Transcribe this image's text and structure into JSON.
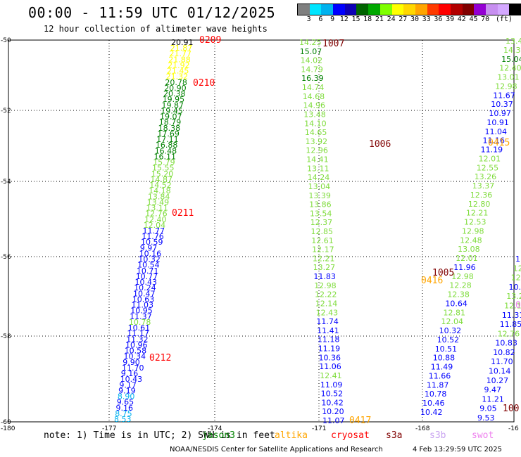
{
  "title": "00:00 - 11:59 UTC 01/12/2025",
  "subtitle": "12 hour collection of altimeter wave heights",
  "colorbar": {
    "colors": [
      "#7f7f7f",
      "#00e5ff",
      "#00b2ee",
      "#0000ff",
      "#0d00b5",
      "#006400",
      "#00a800",
      "#7fff00",
      "#ffff00",
      "#ffd700",
      "#ffa500",
      "#ff3b00",
      "#ff0000",
      "#b20000",
      "#800000",
      "#9400d3",
      "#c78ff0",
      "#d4a8ff",
      "#000000"
    ],
    "labels": [
      "3",
      "6",
      "9",
      "12",
      "15",
      "18",
      "21",
      "24",
      "27",
      "30",
      "33",
      "36",
      "39",
      "42",
      "45",
      "70",
      "(ft)"
    ]
  },
  "axes": {
    "lat_labels": [
      "-50",
      "-52",
      "-54",
      "-56",
      "-58",
      "-60"
    ],
    "lon_labels": [
      "-180",
      "-177",
      "-174",
      "-171",
      "-168",
      "-16"
    ]
  },
  "footer": {
    "note": "note: 1) Time is in UTC; 2) SWH is in feet",
    "legend": [
      {
        "label": "jason3",
        "color": "#008000"
      },
      {
        "label": "altika",
        "color": "#ffa500"
      },
      {
        "label": "cryosat",
        "color": "#ff0000"
      },
      {
        "label": "s3a",
        "color": "#800000"
      },
      {
        "label": "s3b",
        "color": "#c8a2f0"
      },
      {
        "label": "swot",
        "color": "#ee82ee"
      }
    ],
    "credit": "NOAA/NESDIS Center for Satellite Applications and Research",
    "timestamp": "4 Feb 13:29:59 UTC 2025"
  },
  "time_labels": [
    {
      "text": "0209",
      "color": "#ff0000"
    },
    {
      "text": "0210",
      "color": "#ff0000"
    },
    {
      "text": "0211",
      "color": "#ff0000"
    },
    {
      "text": "0212",
      "color": "#ff0000"
    },
    {
      "text": "1007",
      "color": "#800000"
    },
    {
      "text": "1006",
      "color": "#800000"
    },
    {
      "text": "1005",
      "color": "#800000"
    },
    {
      "text": "0415",
      "color": "#ffa500"
    },
    {
      "text": "0416",
      "color": "#ffa500"
    },
    {
      "text": "0417",
      "color": "#ffa500"
    },
    {
      "text": "100",
      "color": "#800000"
    },
    {
      "text": "0",
      "color": "#ee82ee"
    }
  ],
  "tracks": {
    "track_a": [
      {
        "v": "20.91",
        "c": "#000000"
      },
      {
        "v": "21.87",
        "c": "#ffff00"
      },
      {
        "v": "21.77",
        "c": "#ffff00"
      },
      {
        "v": "21.88",
        "c": "#ffff00"
      },
      {
        "v": "21.92",
        "c": "#ffff00"
      },
      {
        "v": "21.45",
        "c": "#ffff00"
      },
      {
        "v": "21.32",
        "c": "#ffff00"
      },
      {
        "v": "20.78",
        "c": "#008000"
      },
      {
        "v": "20.90",
        "c": "#008000"
      },
      {
        "v": "20.38",
        "c": "#008000"
      },
      {
        "v": "19.95",
        "c": "#008000"
      },
      {
        "v": "19.87",
        "c": "#008000"
      },
      {
        "v": "19.45",
        "c": "#008000"
      },
      {
        "v": "19.07",
        "c": "#008000"
      },
      {
        "v": "18.79",
        "c": "#008000"
      },
      {
        "v": "18.38",
        "c": "#008000"
      },
      {
        "v": "17.69",
        "c": "#008000"
      },
      {
        "v": "17.11",
        "c": "#008000"
      },
      {
        "v": "16.88",
        "c": "#008000"
      },
      {
        "v": "16.48",
        "c": "#008000"
      },
      {
        "v": "16.11",
        "c": "#008000"
      },
      {
        "v": "15.79",
        "c": "#7fdc3c"
      },
      {
        "v": "15.55",
        "c": "#7fdc3c"
      },
      {
        "v": "15.20",
        "c": "#7fdc3c"
      },
      {
        "v": "14.87",
        "c": "#7fdc3c"
      },
      {
        "v": "14.52",
        "c": "#7fdc3c"
      },
      {
        "v": "14.18",
        "c": "#7fdc3c"
      },
      {
        "v": "13.84",
        "c": "#7fdc3c"
      },
      {
        "v": "13.49",
        "c": "#7fdc3c"
      },
      {
        "v": "13.11",
        "c": "#7fdc3c"
      },
      {
        "v": "12.76",
        "c": "#7fdc3c"
      },
      {
        "v": "12.40",
        "c": "#7fdc3c"
      },
      {
        "v": "12.04",
        "c": "#7fdc3c"
      },
      {
        "v": "11.77",
        "c": "#0000ff"
      },
      {
        "v": "11.76",
        "c": "#0000ff"
      },
      {
        "v": "10.59",
        "c": "#0000ff"
      },
      {
        "v": "9.97",
        "c": "#0000ff"
      },
      {
        "v": "10.16",
        "c": "#0000ff"
      },
      {
        "v": "10.32",
        "c": "#0000ff"
      },
      {
        "v": "10.54",
        "c": "#0000ff"
      },
      {
        "v": "10.71",
        "c": "#0000ff"
      },
      {
        "v": "10.77",
        "c": "#0000ff"
      },
      {
        "v": "10.43",
        "c": "#0000ff"
      },
      {
        "v": "10.24",
        "c": "#0000ff"
      },
      {
        "v": "10.47",
        "c": "#0000ff"
      },
      {
        "v": "10.63",
        "c": "#0000ff"
      },
      {
        "v": "11.03",
        "c": "#0000ff"
      },
      {
        "v": "10.95",
        "c": "#0000ff"
      },
      {
        "v": "11.37",
        "c": "#0000ff"
      },
      {
        "v": "10.78",
        "c": "#7fdc3c"
      },
      {
        "v": "10.61",
        "c": "#0000ff"
      },
      {
        "v": "11.17",
        "c": "#0000ff"
      },
      {
        "v": "11.32",
        "c": "#0000ff"
      },
      {
        "v": "10.96",
        "c": "#0000ff"
      },
      {
        "v": "10.58",
        "c": "#0000ff"
      },
      {
        "v": "10.34",
        "c": "#0000ff"
      },
      {
        "v": "9.90",
        "c": "#0000ff"
      },
      {
        "v": "11.70",
        "c": "#0000ff"
      },
      {
        "v": "9.16",
        "c": "#0000ff"
      },
      {
        "v": "10.43",
        "c": "#0000ff"
      },
      {
        "v": "9.17",
        "c": "#0000ff"
      },
      {
        "v": "9.19",
        "c": "#0000ff"
      },
      {
        "v": "8.90",
        "c": "#00b2ee"
      },
      {
        "v": "9.65",
        "c": "#0000ff"
      },
      {
        "v": "9.16",
        "c": "#0000ff"
      },
      {
        "v": "8.75",
        "c": "#00b2ee"
      },
      {
        "v": "8.53",
        "c": "#00b2ee"
      }
    ],
    "track_b": [
      {
        "v": "14.25",
        "c": "#7fdc3c"
      },
      {
        "v": "15.07",
        "c": "#008000"
      },
      {
        "v": "14.02",
        "c": "#7fdc3c"
      },
      {
        "v": "14.79",
        "c": "#7fdc3c"
      },
      {
        "v": "16.39",
        "c": "#008000"
      },
      {
        "v": "14.74",
        "c": "#7fdc3c"
      },
      {
        "v": "14.68",
        "c": "#7fdc3c"
      },
      {
        "v": "14.96",
        "c": "#7fdc3c"
      },
      {
        "v": "13.48",
        "c": "#7fdc3c"
      },
      {
        "v": "14.10",
        "c": "#7fdc3c"
      },
      {
        "v": "14.65",
        "c": "#7fdc3c"
      },
      {
        "v": "13.92",
        "c": "#7fdc3c"
      },
      {
        "v": "12.96",
        "c": "#7fdc3c"
      },
      {
        "v": "14.41",
        "c": "#7fdc3c"
      },
      {
        "v": "13.11",
        "c": "#7fdc3c"
      },
      {
        "v": "14.24",
        "c": "#7fdc3c"
      },
      {
        "v": "13.04",
        "c": "#7fdc3c"
      },
      {
        "v": "13.39",
        "c": "#7fdc3c"
      },
      {
        "v": "13.86",
        "c": "#7fdc3c"
      },
      {
        "v": "13.54",
        "c": "#7fdc3c"
      },
      {
        "v": "12.37",
        "c": "#7fdc3c"
      },
      {
        "v": "12.85",
        "c": "#7fdc3c"
      },
      {
        "v": "12.61",
        "c": "#7fdc3c"
      },
      {
        "v": "12.17",
        "c": "#7fdc3c"
      },
      {
        "v": "12.21",
        "c": "#7fdc3c"
      },
      {
        "v": "13.27",
        "c": "#7fdc3c"
      },
      {
        "v": "11.83",
        "c": "#0000ff"
      },
      {
        "v": "12.98",
        "c": "#7fdc3c"
      },
      {
        "v": "12.22",
        "c": "#7fdc3c"
      },
      {
        "v": "12.14",
        "c": "#7fdc3c"
      },
      {
        "v": "12.43",
        "c": "#7fdc3c"
      },
      {
        "v": "11.74",
        "c": "#0000ff"
      },
      {
        "v": "11.41",
        "c": "#0000ff"
      },
      {
        "v": "11.18",
        "c": "#0000ff"
      },
      {
        "v": "11.19",
        "c": "#0000ff"
      },
      {
        "v": "10.36",
        "c": "#0000ff"
      },
      {
        "v": "11.06",
        "c": "#0000ff"
      },
      {
        "v": "12.41",
        "c": "#7fdc3c"
      },
      {
        "v": "11.09",
        "c": "#0000ff"
      },
      {
        "v": "10.52",
        "c": "#0000ff"
      },
      {
        "v": "10.42",
        "c": "#0000ff"
      },
      {
        "v": "10.20",
        "c": "#0000ff"
      },
      {
        "v": "11.07",
        "c": "#0000ff"
      }
    ],
    "track_c": [
      {
        "v": "13.46",
        "c": "#7fdc3c"
      },
      {
        "v": "14.38",
        "c": "#7fdc3c"
      },
      {
        "v": "15.04",
        "c": "#008000"
      },
      {
        "v": "12.40",
        "c": "#7fdc3c"
      },
      {
        "v": "13.01",
        "c": "#7fdc3c"
      },
      {
        "v": "12.98",
        "c": "#7fdc3c"
      },
      {
        "v": "11.67",
        "c": "#0000ff"
      },
      {
        "v": "10.37",
        "c": "#0000ff"
      },
      {
        "v": "10.97",
        "c": "#0000ff"
      },
      {
        "v": "10.91",
        "c": "#0000ff"
      },
      {
        "v": "11.04",
        "c": "#0000ff"
      },
      {
        "v": "11.16",
        "c": "#0000ff"
      },
      {
        "v": "11.19",
        "c": "#0000ff"
      },
      {
        "v": "12.01",
        "c": "#7fdc3c"
      },
      {
        "v": "12.55",
        "c": "#7fdc3c"
      },
      {
        "v": "13.26",
        "c": "#7fdc3c"
      },
      {
        "v": "13.37",
        "c": "#7fdc3c"
      },
      {
        "v": "12.36",
        "c": "#7fdc3c"
      },
      {
        "v": "12.80",
        "c": "#7fdc3c"
      },
      {
        "v": "12.21",
        "c": "#7fdc3c"
      },
      {
        "v": "12.53",
        "c": "#7fdc3c"
      },
      {
        "v": "12.98",
        "c": "#7fdc3c"
      },
      {
        "v": "12.48",
        "c": "#7fdc3c"
      },
      {
        "v": "13.08",
        "c": "#7fdc3c"
      },
      {
        "v": "12.01",
        "c": "#7fdc3c"
      },
      {
        "v": "11.96",
        "c": "#0000ff"
      },
      {
        "v": "12.98",
        "c": "#7fdc3c"
      },
      {
        "v": "12.28",
        "c": "#7fdc3c"
      },
      {
        "v": "12.38",
        "c": "#7fdc3c"
      },
      {
        "v": "10.64",
        "c": "#0000ff"
      },
      {
        "v": "12.81",
        "c": "#7fdc3c"
      },
      {
        "v": "12.04",
        "c": "#7fdc3c"
      },
      {
        "v": "10.32",
        "c": "#0000ff"
      },
      {
        "v": "10.52",
        "c": "#0000ff"
      },
      {
        "v": "10.51",
        "c": "#0000ff"
      },
      {
        "v": "10.88",
        "c": "#0000ff"
      },
      {
        "v": "11.49",
        "c": "#0000ff"
      },
      {
        "v": "11.66",
        "c": "#0000ff"
      },
      {
        "v": "11.87",
        "c": "#0000ff"
      },
      {
        "v": "10.78",
        "c": "#0000ff"
      },
      {
        "v": "10.46",
        "c": "#0000ff"
      },
      {
        "v": "10.42",
        "c": "#0000ff"
      }
    ],
    "track_d": [
      {
        "v": "1",
        "c": "#0000ff"
      },
      {
        "v": "12.",
        "c": "#7fdc3c"
      },
      {
        "v": "12.3",
        "c": "#7fdc3c"
      },
      {
        "v": "10.84",
        "c": "#0000ff"
      },
      {
        "v": "13.23",
        "c": "#7fdc3c"
      },
      {
        "v": "12.10",
        "c": "#7fdc3c"
      },
      {
        "v": "11.31",
        "c": "#0000ff"
      },
      {
        "v": "11.85",
        "c": "#0000ff"
      },
      {
        "v": "12.76",
        "c": "#7fdc3c"
      },
      {
        "v": "10.83",
        "c": "#0000ff"
      },
      {
        "v": "10.82",
        "c": "#0000ff"
      },
      {
        "v": "11.70",
        "c": "#0000ff"
      },
      {
        "v": "10.14",
        "c": "#0000ff"
      },
      {
        "v": "10.27",
        "c": "#0000ff"
      },
      {
        "v": "9.47",
        "c": "#0000ff"
      },
      {
        "v": "11.21",
        "c": "#0000ff"
      },
      {
        "v": "9.05",
        "c": "#0000ff"
      },
      {
        "v": "9.53",
        "c": "#0000ff"
      }
    ]
  }
}
